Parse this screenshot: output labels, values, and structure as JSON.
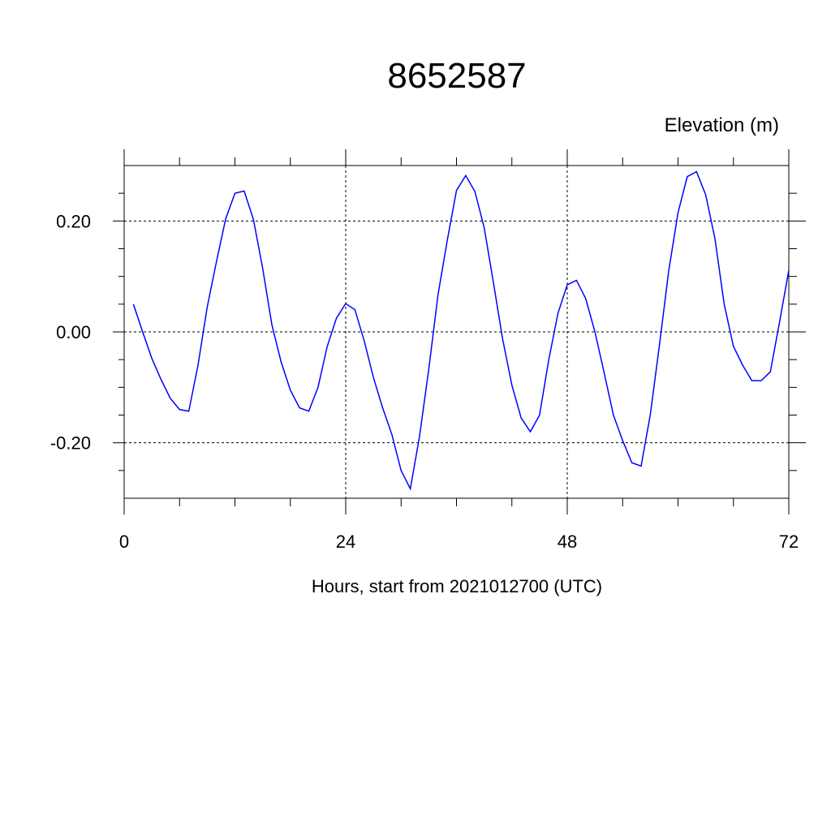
{
  "chart_data": {
    "type": "line",
    "title": "8652587",
    "y_label": "Elevation (m)",
    "x_label": "Hours, start from 2021012700 (UTC)",
    "x": [
      1,
      2,
      3,
      4,
      5,
      6,
      7,
      8,
      9,
      10,
      11,
      12,
      13,
      14,
      15,
      16,
      17,
      18,
      19,
      20,
      21,
      22,
      23,
      24,
      25,
      26,
      27,
      28,
      29,
      30,
      31,
      32,
      33,
      34,
      35,
      36,
      37,
      38,
      39,
      40,
      41,
      42,
      43,
      44,
      45,
      46,
      47,
      48,
      49,
      50,
      51,
      52,
      53,
      54,
      55,
      56,
      57,
      58,
      59,
      60,
      61,
      62,
      63,
      64,
      65,
      66,
      67,
      68,
      69,
      70,
      71,
      72
    ],
    "series": [
      {
        "color": "#0000ff",
        "values": [
          0.05,
          0.0,
          -0.048,
          -0.086,
          -0.12,
          -0.14,
          -0.143,
          -0.06,
          0.045,
          0.127,
          0.204,
          0.25,
          0.254,
          0.203,
          0.115,
          0.013,
          -0.054,
          -0.105,
          -0.137,
          -0.143,
          -0.1,
          -0.026,
          0.025,
          0.051,
          0.04,
          -0.016,
          -0.082,
          -0.137,
          -0.185,
          -0.25,
          -0.283,
          -0.188,
          -0.067,
          0.067,
          0.165,
          0.255,
          0.282,
          0.253,
          0.188,
          0.089,
          -0.013,
          -0.096,
          -0.155,
          -0.18,
          -0.15,
          -0.05,
          0.034,
          0.085,
          0.093,
          0.06,
          0.0,
          -0.074,
          -0.15,
          -0.196,
          -0.236,
          -0.242,
          -0.149,
          -0.022,
          0.111,
          0.215,
          0.28,
          0.289,
          0.247,
          0.168,
          0.05,
          -0.026,
          -0.06,
          -0.088,
          -0.088,
          -0.072,
          0.018,
          0.111
        ]
      }
    ],
    "xlim": [
      0,
      72
    ],
    "xticks": [
      0,
      24,
      48,
      72
    ],
    "xminor_ticks": [
      6,
      12,
      18,
      30,
      36,
      42,
      54,
      60,
      66
    ],
    "ylim": [
      -0.3,
      0.3
    ],
    "yticks": [
      {
        "value": -0.2,
        "label": "-0.20"
      },
      {
        "value": 0,
        "label": "0.00"
      },
      {
        "value": 0.2,
        "label": "0.20"
      }
    ],
    "yminor_ticks": [
      -0.25,
      -0.15,
      -0.1,
      -0.05,
      0.05,
      0.1,
      0.15,
      0.25
    ],
    "grid": true
  }
}
